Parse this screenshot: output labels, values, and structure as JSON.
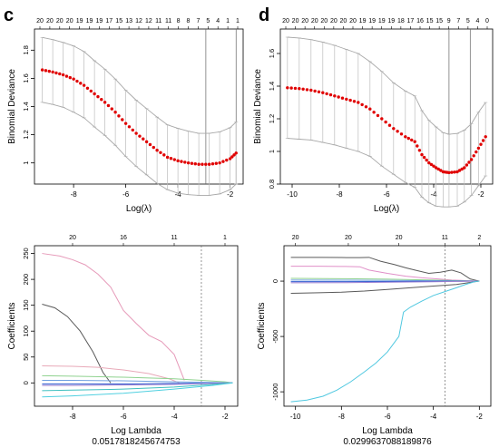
{
  "chart_data": [
    {
      "id": "c",
      "type": "line",
      "panel_label": "c",
      "xlabel": "Log(λ)",
      "ylabel": "Binomial Deviance",
      "xlim": [
        -9.5,
        -1.5
      ],
      "ylim": [
        0.85,
        1.95
      ],
      "x_ticks": [
        -8,
        -6,
        -4,
        -2
      ],
      "y_ticks": [
        1.0,
        1.2,
        1.4,
        1.6,
        1.8
      ],
      "top_tick_labels": [
        "20",
        "20",
        "20",
        "20",
        "19",
        "19",
        "19",
        "17",
        "15",
        "13",
        "12",
        "12",
        "11",
        "11",
        "8",
        "8",
        "7",
        "5",
        "4",
        "1",
        "1"
      ],
      "vlines": [
        -2.93,
        -1.77
      ],
      "series": [
        {
          "style": "cv-error-bars",
          "x": [
            -9.2,
            -8.8,
            -8.4,
            -8.0,
            -7.6,
            -7.2,
            -6.8,
            -6.4,
            -6.0,
            -5.6,
            -5.2,
            -4.8,
            -4.4,
            -4.0,
            -3.6,
            -3.2,
            -2.8,
            -2.4,
            -2.0,
            -1.77
          ],
          "y": [
            1.66,
            1.645,
            1.625,
            1.595,
            1.55,
            1.49,
            1.43,
            1.36,
            1.28,
            1.21,
            1.15,
            1.09,
            1.04,
            1.015,
            1.0,
            0.99,
            0.99,
            1.0,
            1.03,
            1.07
          ],
          "lower": [
            1.43,
            1.415,
            1.395,
            1.36,
            1.32,
            1.255,
            1.195,
            1.125,
            1.045,
            0.975,
            0.915,
            0.855,
            0.81,
            0.785,
            0.775,
            0.77,
            0.77,
            0.78,
            0.81,
            0.85
          ],
          "upper": [
            1.89,
            1.875,
            1.855,
            1.83,
            1.79,
            1.725,
            1.665,
            1.595,
            1.515,
            1.445,
            1.385,
            1.325,
            1.27,
            1.245,
            1.225,
            1.21,
            1.21,
            1.22,
            1.25,
            1.29
          ]
        }
      ]
    },
    {
      "id": "d",
      "type": "line",
      "panel_label": "d",
      "xlabel": "Log(λ)",
      "ylabel": "Binomial Deviance",
      "xlim": [
        -10.5,
        -1.5
      ],
      "ylim": [
        0.8,
        1.75
      ],
      "x_ticks": [
        -10,
        -8,
        -6,
        -4,
        -2
      ],
      "y_ticks": [
        0.8,
        1.0,
        1.2,
        1.4,
        1.6
      ],
      "top_tick_labels": [
        "20",
        "20",
        "20",
        "20",
        "20",
        "20",
        "20",
        "20",
        "19",
        "19",
        "19",
        "19",
        "18",
        "17",
        "16",
        "15",
        "15",
        "9",
        "7",
        "5",
        "4",
        "0"
      ],
      "vlines": [
        -3.35,
        -2.45
      ],
      "series": [
        {
          "style": "cv-error-bars",
          "x": [
            -10.2,
            -9.7,
            -9.2,
            -8.7,
            -8.2,
            -7.7,
            -7.2,
            -6.7,
            -6.2,
            -5.7,
            -5.2,
            -4.8,
            -4.5,
            -4.2,
            -3.9,
            -3.6,
            -3.35,
            -3.0,
            -2.7,
            -2.4,
            -2.1,
            -1.8
          ],
          "y": [
            1.39,
            1.385,
            1.375,
            1.36,
            1.34,
            1.32,
            1.3,
            1.26,
            1.2,
            1.14,
            1.09,
            1.06,
            0.98,
            0.93,
            0.9,
            0.875,
            0.87,
            0.875,
            0.9,
            0.95,
            1.02,
            1.09
          ],
          "lower": [
            1.08,
            1.075,
            1.07,
            1.055,
            1.04,
            1.02,
            1.0,
            0.97,
            0.91,
            0.86,
            0.81,
            0.78,
            0.72,
            0.685,
            0.665,
            0.66,
            0.66,
            0.665,
            0.69,
            0.73,
            0.79,
            0.85
          ],
          "upper": [
            1.7,
            1.695,
            1.685,
            1.67,
            1.65,
            1.625,
            1.6,
            1.55,
            1.49,
            1.42,
            1.37,
            1.34,
            1.25,
            1.19,
            1.15,
            1.115,
            1.105,
            1.11,
            1.13,
            1.17,
            1.24,
            1.3
          ]
        }
      ]
    },
    {
      "id": "e",
      "type": "line",
      "xlabel": "Log Lambda",
      "subtitle": "0.0517818245674753",
      "ylabel": "Coefficients",
      "xlim": [
        -9.5,
        -1.5
      ],
      "ylim": [
        -45,
        265
      ],
      "x_ticks": [
        -8,
        -6,
        -4,
        -2
      ],
      "y_ticks": [
        0,
        50,
        100,
        150,
        200,
        250
      ],
      "top_tick_labels": [
        "20",
        "16",
        "11",
        "1"
      ],
      "top_tick_x": [
        -8,
        -6,
        -4,
        -2
      ],
      "vlines": [
        -2.93
      ],
      "series": [
        {
          "color": "#e69ab9",
          "x": [
            -9.2,
            -8.5,
            -8.0,
            -7.5,
            -7.0,
            -6.5,
            -6.0,
            -5.5,
            -5.0,
            -4.5,
            -4.0,
            -3.6
          ],
          "y": [
            250,
            245,
            238,
            228,
            210,
            185,
            140,
            115,
            92,
            80,
            55,
            5
          ]
        },
        {
          "color": "#5a5a5a",
          "x": [
            -9.2,
            -8.7,
            -8.2,
            -7.7,
            -7.2,
            -6.8,
            -6.5
          ],
          "y": [
            152,
            145,
            128,
            100,
            60,
            20,
            0
          ]
        },
        {
          "color": "#e8a9b8",
          "x": [
            -9.2,
            -8.0,
            -7.0,
            -6.0,
            -5.0,
            -4.2,
            -3.8
          ],
          "y": [
            33,
            32,
            30,
            25,
            18,
            8,
            0
          ]
        },
        {
          "color": "#8fd28f",
          "x": [
            -9.2,
            -8.0,
            -6.0,
            -4.0,
            -2.9,
            -2.0,
            -1.7
          ],
          "y": [
            14,
            13,
            11,
            8,
            5,
            2,
            0
          ]
        },
        {
          "color": "#6fa0e0",
          "x": [
            -9.2,
            -8.0,
            -6.0,
            -4.0,
            -2.5,
            -1.7
          ],
          "y": [
            5,
            5,
            4,
            2,
            1,
            0
          ]
        },
        {
          "color": "#2f5bd0",
          "x": [
            -9.2,
            -8.0,
            -6.0,
            -4.0,
            -2.5,
            -1.7
          ],
          "y": [
            -2,
            -2,
            -2,
            -1,
            -0.5,
            0
          ]
        },
        {
          "color": "#9a7fd0",
          "x": [
            -9.2,
            -8.0,
            -6.0,
            -4.0,
            -2.5,
            -1.7
          ],
          "y": [
            -5,
            -5,
            -4,
            -3,
            -1,
            0
          ]
        },
        {
          "color": "#40c0c0",
          "x": [
            -9.2,
            -8.0,
            -6.0,
            -4.0,
            -2.5,
            -1.7
          ],
          "y": [
            -15,
            -14,
            -12,
            -8,
            -3,
            0
          ]
        },
        {
          "color": "#50d0e0",
          "x": [
            -9.2,
            -8.0,
            -6.0,
            -4.0,
            -2.5,
            -1.7
          ],
          "y": [
            -27,
            -25,
            -20,
            -12,
            -5,
            0
          ]
        }
      ]
    },
    {
      "id": "f",
      "type": "line",
      "xlabel": "Log Lambda",
      "subtitle": "0.0299637088189876",
      "ylabel": "Coefficients",
      "xlim": [
        -10.5,
        -1.5
      ],
      "ylim": [
        -1130,
        320
      ],
      "x_ticks": [
        -10,
        -8,
        -6,
        -4,
        -2
      ],
      "y_ticks": [
        -1000,
        -500,
        0
      ],
      "top_tick_labels": [
        "20",
        "20",
        "20",
        "11",
        "2"
      ],
      "top_tick_x": [
        -10,
        -7.7,
        -5.5,
        -3.5,
        -2
      ],
      "vlines": [
        -3.5
      ],
      "series": [
        {
          "color": "#5a5a5a",
          "x": [
            -10.2,
            -9.0,
            -8.0,
            -7.2,
            -6.8,
            -6.3,
            -5.7,
            -5.2,
            -4.7,
            -4.2,
            -3.7,
            -3.2,
            -2.8,
            -2.4,
            -2.0
          ],
          "y": [
            215,
            215,
            213,
            212,
            215,
            180,
            150,
            120,
            95,
            70,
            80,
            100,
            75,
            20,
            0
          ]
        },
        {
          "color": "#e08fc8",
          "x": [
            -10.2,
            -9.0,
            -8.0,
            -7.2,
            -6.8,
            -6.0,
            -5.2,
            -4.5,
            -3.8,
            -3.2,
            -2.6,
            -2.0
          ],
          "y": [
            135,
            135,
            133,
            130,
            100,
            70,
            45,
            30,
            20,
            10,
            5,
            0
          ]
        },
        {
          "color": "#8fd28f",
          "x": [
            -10.2,
            -8.0,
            -6.0,
            -4.0,
            -3.0,
            -2.0
          ],
          "y": [
            25,
            22,
            18,
            10,
            5,
            0
          ]
        },
        {
          "color": "#6fa0e0",
          "x": [
            -10.2,
            -8.0,
            -6.0,
            -4.0,
            -3.0,
            -2.0
          ],
          "y": [
            10,
            9,
            7,
            4,
            2,
            0
          ]
        },
        {
          "color": "#2f5bd0",
          "x": [
            -10.2,
            -8.0,
            -6.0,
            -4.0,
            -3.0,
            -2.0
          ],
          "y": [
            -5,
            -5,
            -4,
            -2,
            -1,
            0
          ]
        },
        {
          "color": "#9a7fd0",
          "x": [
            -10.2,
            -8.0,
            -6.0,
            -4.0,
            -3.0,
            -2.0
          ],
          "y": [
            -15,
            -14,
            -10,
            -6,
            -3,
            0
          ]
        },
        {
          "color": "#5a5a5a",
          "x": [
            -10.2,
            -9.0,
            -8.0,
            -7.0,
            -6.0,
            -5.0,
            -4.0,
            -3.0,
            -2.5,
            -2.0
          ],
          "y": [
            -110,
            -105,
            -100,
            -90,
            -75,
            -60,
            -45,
            -30,
            -15,
            0
          ]
        },
        {
          "color": "#50c8e0",
          "x": [
            -10.2,
            -9.5,
            -8.8,
            -8.2,
            -7.6,
            -7.0,
            -6.5,
            -6.0,
            -5.5,
            -5.3,
            -5.0,
            -4.5,
            -4.0,
            -3.5,
            -3.0,
            -2.6,
            -2.2,
            -2.0
          ],
          "y": [
            -1090,
            -1075,
            -1040,
            -985,
            -910,
            -820,
            -740,
            -640,
            -500,
            -280,
            -235,
            -180,
            -130,
            -95,
            -60,
            -30,
            -5,
            0
          ]
        }
      ]
    }
  ]
}
